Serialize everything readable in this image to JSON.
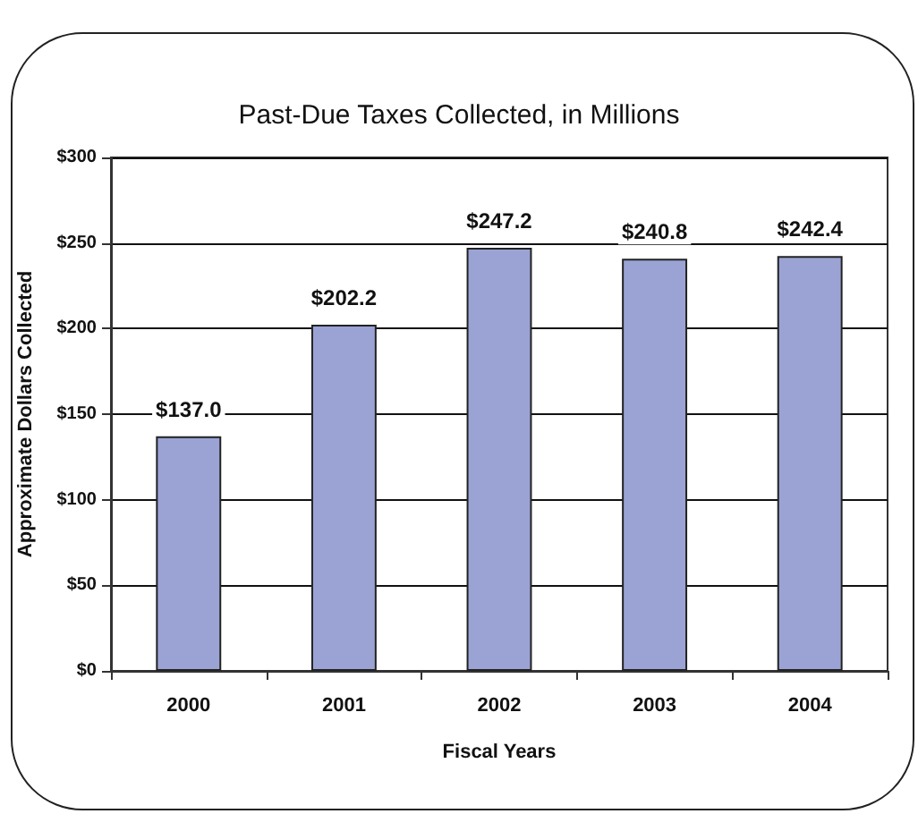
{
  "chart_data": {
    "type": "bar",
    "title": "Past-Due Taxes Collected, in Millions",
    "xlabel": "Fiscal Years",
    "ylabel": "Approximate Dollars Collected",
    "categories": [
      "2000",
      "2001",
      "2002",
      "2003",
      "2004"
    ],
    "values": [
      137.0,
      202.2,
      247.2,
      240.8,
      242.4
    ],
    "value_labels": [
      "$137.0",
      "$202.2",
      "$247.2",
      "$240.8",
      "$242.4"
    ],
    "color": "#9aa3d4",
    "ylim": [
      0,
      300
    ],
    "yticks": [
      {
        "value": 0,
        "label": "$0"
      },
      {
        "value": 50,
        "label": "$50"
      },
      {
        "value": 100,
        "label": "$100"
      },
      {
        "value": 150,
        "label": "$150"
      },
      {
        "value": 200,
        "label": "$200"
      },
      {
        "value": 250,
        "label": "$250"
      },
      {
        "value": 300,
        "label": "$300"
      }
    ],
    "grid": "y"
  }
}
